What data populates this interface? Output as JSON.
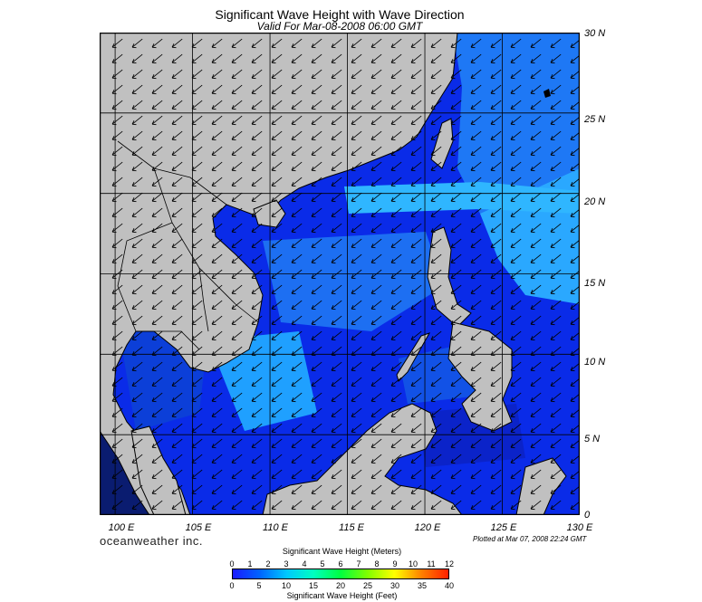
{
  "header": {
    "title": "Significant Wave Height with Wave Direction",
    "subtitle": "Valid For Mar-08-2008 06:00 GMT"
  },
  "map": {
    "lat_labels": [
      "30 N",
      "25 N",
      "20 N",
      "15 N",
      "10 N",
      "5 N",
      "0"
    ],
    "lon_labels": [
      "100 E",
      "105 E",
      "110 E",
      "115 E",
      "120 E",
      "125 E",
      "130 E"
    ],
    "lon_range": [
      99,
      130
    ],
    "lat_range": [
      0,
      30
    ],
    "grid_lines": true,
    "predominant_wave_direction": "from northeast toward southwest",
    "colors": {
      "land": "#c0c0c0",
      "ocean_deep": "#0a2be8",
      "ocean_calm": "#0b23c9",
      "ocean_high": "#2fb6ff",
      "ocean_peak": "#32f0f0",
      "coast": "#000000"
    }
  },
  "footer": {
    "brand": "oceanweather inc.",
    "plotted": "Plotted at Mar 07, 2008 22:24 GMT"
  },
  "colorbar": {
    "meters_title": "Significant Wave Height (Meters)",
    "feet_title": "Significant Wave Height (Feet)",
    "meters_ticks": [
      "0",
      "1",
      "2",
      "3",
      "4",
      "5",
      "6",
      "7",
      "8",
      "9",
      "10",
      "11",
      "12"
    ],
    "feet_ticks": [
      "0",
      "5",
      "10",
      "15",
      "20",
      "25",
      "30",
      "35",
      "40"
    ],
    "gradient_colors": [
      "#1a1aff",
      "#0064ff",
      "#00c8ff",
      "#00ffc0",
      "#00ff40",
      "#80ff00",
      "#ffff00",
      "#ff8000",
      "#ff2000"
    ]
  }
}
